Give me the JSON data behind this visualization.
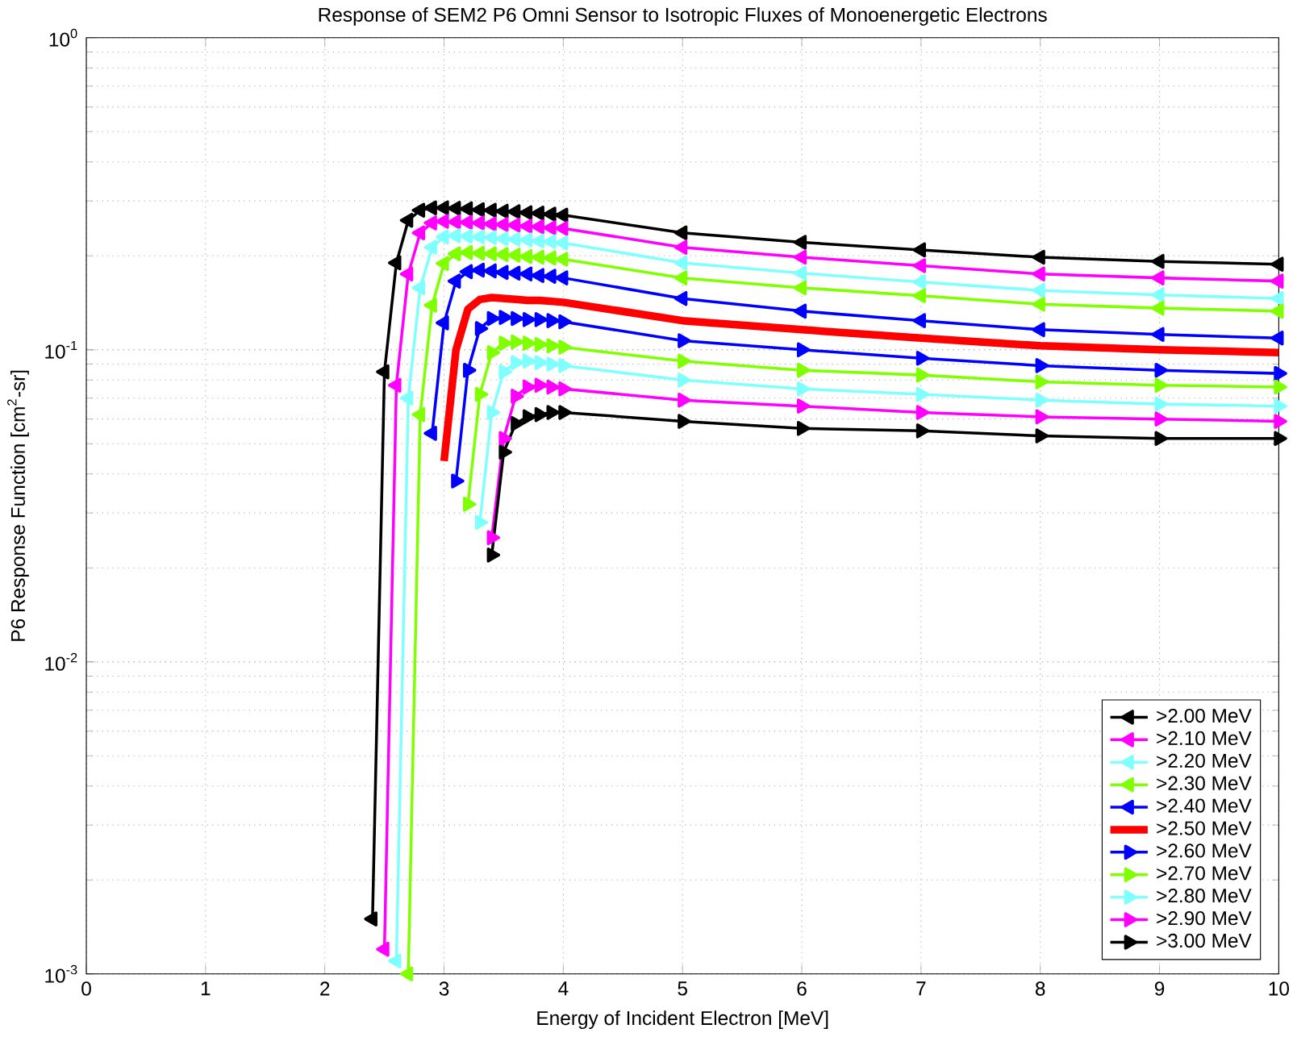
{
  "chart_data": {
    "type": "line",
    "title": "Response of SEM2 P6 Omni Sensor to Isotropic Fluxes of Monoenergetic Electrons",
    "xlabel": "Energy of Incident Electron [MeV]",
    "ylabel": "P6 Response Function [cm$^{2}$-sr]",
    "x": [
      2.4,
      2.5,
      2.6,
      2.7,
      2.8,
      2.9,
      3.0,
      3.1,
      3.2,
      3.3,
      3.4,
      3.5,
      3.6,
      3.7,
      3.8,
      3.9,
      4.0,
      5,
      6,
      7,
      8,
      9,
      10
    ],
    "xlim": [
      0,
      10
    ],
    "xticks": [
      0,
      1,
      2,
      3,
      4,
      5,
      6,
      7,
      8,
      9,
      10
    ],
    "ylim": [
      0.001,
      1
    ],
    "yticks": [
      {
        "value": 0.001,
        "label": "10$^{-3}$"
      },
      {
        "value": 0.01,
        "label": "10$^{-2}$"
      },
      {
        "value": 0.1,
        "label": "10$^{-1}$"
      },
      {
        "value": 1,
        "label": "10$^{0}$"
      }
    ],
    "log": "y",
    "grid": true,
    "legend": "bottom right",
    "marker": "triangle",
    "line_style": "solid",
    "series": [
      {
        "name": ">2.00 MeV",
        "color": "#000000",
        "values": [
          0.0015,
          0.085,
          0.19,
          0.26,
          0.28,
          0.285,
          0.285,
          0.284,
          0.283,
          0.281,
          0.28,
          0.278,
          0.277,
          0.275,
          0.274,
          0.272,
          0.27,
          0.237,
          0.221,
          0.209,
          0.198,
          0.192,
          0.188
        ]
      },
      {
        "name": ">2.10 MeV",
        "color": "#ff00ff",
        "values": [
          null,
          0.0012,
          0.077,
          0.175,
          0.237,
          0.255,
          0.258,
          0.257,
          0.256,
          0.255,
          0.253,
          0.252,
          0.251,
          0.249,
          0.248,
          0.246,
          0.245,
          0.213,
          0.198,
          0.186,
          0.175,
          0.17,
          0.166
        ]
      },
      {
        "name": ">2.20 MeV",
        "color": "#80ffff",
        "values": [
          null,
          null,
          0.0011,
          0.07,
          0.158,
          0.213,
          0.23,
          0.232,
          0.231,
          0.23,
          0.229,
          0.227,
          0.226,
          0.225,
          0.223,
          0.222,
          0.22,
          0.19,
          0.176,
          0.165,
          0.155,
          0.15,
          0.146
        ]
      },
      {
        "name": ">2.30 MeV",
        "color": "#80ff00",
        "values": [
          null,
          null,
          null,
          0.001,
          0.062,
          0.139,
          0.189,
          0.203,
          0.205,
          0.204,
          0.203,
          0.202,
          0.201,
          0.199,
          0.198,
          0.197,
          0.195,
          0.17,
          0.158,
          0.149,
          0.14,
          0.136,
          0.133
        ]
      },
      {
        "name": ">2.40 MeV",
        "color": "#0000ff",
        "values": [
          null,
          null,
          null,
          null,
          null,
          0.054,
          0.122,
          0.166,
          0.178,
          0.18,
          0.179,
          0.177,
          0.176,
          0.175,
          0.173,
          0.172,
          0.17,
          0.146,
          0.133,
          0.124,
          0.116,
          0.112,
          0.109
        ]
      },
      {
        "name": ">2.50 MeV",
        "color": "#ff0000",
        "marker": "none",
        "values": [
          null,
          null,
          null,
          null,
          null,
          null,
          0.044,
          0.1,
          0.135,
          0.145,
          0.147,
          0.146,
          0.145,
          0.144,
          0.144,
          0.143,
          0.142,
          0.124,
          0.116,
          0.109,
          0.103,
          0.1,
          0.098
        ]
      },
      {
        "name": ">2.60 MeV",
        "color": "#0000ff",
        "values": [
          null,
          null,
          null,
          null,
          null,
          null,
          null,
          0.038,
          0.086,
          0.117,
          0.126,
          0.127,
          0.126,
          0.125,
          0.125,
          0.124,
          0.123,
          0.107,
          0.1,
          0.094,
          0.089,
          0.086,
          0.084
        ]
      },
      {
        "name": ">2.70 MeV",
        "color": "#80ff00",
        "values": [
          null,
          null,
          null,
          null,
          null,
          null,
          null,
          null,
          0.032,
          0.072,
          0.098,
          0.105,
          0.106,
          0.105,
          0.104,
          0.103,
          0.102,
          0.092,
          0.086,
          0.083,
          0.079,
          0.077,
          0.076
        ]
      },
      {
        "name": ">2.80 MeV",
        "color": "#80ffff",
        "values": [
          null,
          null,
          null,
          null,
          null,
          null,
          null,
          null,
          null,
          0.028,
          0.063,
          0.085,
          0.091,
          0.092,
          0.091,
          0.09,
          0.089,
          0.08,
          0.075,
          0.072,
          0.069,
          0.067,
          0.066
        ]
      },
      {
        "name": ">2.90 MeV",
        "color": "#ff00ff",
        "values": [
          null,
          null,
          null,
          null,
          null,
          null,
          null,
          null,
          null,
          null,
          0.025,
          0.052,
          0.071,
          0.076,
          0.077,
          0.076,
          0.075,
          0.069,
          0.066,
          0.063,
          0.061,
          0.06,
          0.059
        ]
      },
      {
        "name": ">3.00 MeV",
        "color": "#000000",
        "values": [
          null,
          null,
          null,
          null,
          null,
          null,
          null,
          null,
          null,
          null,
          0.022,
          0.047,
          0.058,
          0.061,
          0.062,
          0.063,
          0.063,
          0.059,
          0.056,
          0.055,
          0.053,
          0.052,
          0.052
        ]
      }
    ]
  }
}
